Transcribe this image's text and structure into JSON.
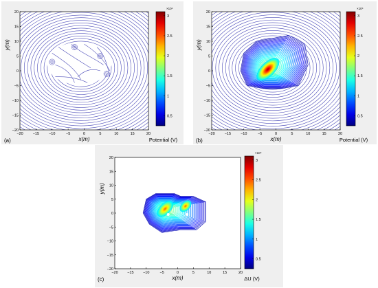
{
  "chart_data": [
    {
      "type": "contour",
      "panel_label": "(a)",
      "xlabel": "x(m)",
      "ylabel": "y(m)",
      "colorbar_label": "Potential (V)",
      "colorbar_exponent": "×10⁴",
      "xlim": [
        -20,
        20
      ],
      "ylim": [
        -20,
        20
      ],
      "x_ticks": [
        "−20",
        "−15",
        "−10",
        "−5",
        "0",
        "5",
        "10",
        "15",
        "20"
      ],
      "y_ticks": [
        "20",
        "15",
        "10",
        "5",
        "0",
        "−5",
        "−10",
        "−15",
        "−20"
      ],
      "colorbar_ticks": [
        "3",
        "2.5",
        "2",
        "1.5",
        "1",
        "0.5"
      ],
      "colorbar_range": [
        0.25,
        3.1
      ],
      "filled_core": false
    },
    {
      "type": "contour",
      "panel_label": "(b)",
      "xlabel": "x(m)",
      "ylabel": "y(m)",
      "colorbar_label": "Potential (V)",
      "colorbar_exponent": "×10⁴",
      "xlim": [
        -20,
        20
      ],
      "ylim": [
        -20,
        20
      ],
      "x_ticks": [
        "−20",
        "−15",
        "−10",
        "−5",
        "0",
        "5",
        "10",
        "15",
        "20"
      ],
      "y_ticks": [
        "20",
        "15",
        "10",
        "5",
        "0",
        "−5",
        "−10",
        "−15",
        "−20"
      ],
      "colorbar_ticks": [
        "3",
        "2.5",
        "2",
        "1.5",
        "1",
        "0.5"
      ],
      "colorbar_range": [
        0.25,
        3.1
      ],
      "filled_core": true,
      "peak": {
        "x": -2.5,
        "y": 0.5
      }
    },
    {
      "type": "contour",
      "panel_label": "(c)",
      "xlabel": "x(m)",
      "ylabel": "y(m)",
      "colorbar_label": "ΔU (V)",
      "colorbar_exponent": "×10⁴",
      "xlim": [
        -20,
        20
      ],
      "ylim": [
        -20,
        20
      ],
      "x_ticks": [
        "−20",
        "−15",
        "−10",
        "−5",
        "0",
        "5",
        "10",
        "15",
        "20"
      ],
      "y_ticks": [
        "20",
        "15",
        "10",
        "5",
        "0",
        "−5",
        "−10",
        "−15",
        "−20"
      ],
      "colorbar_ticks": [
        "3",
        "2.5",
        "2",
        "1.5",
        "1",
        "0.5"
      ],
      "colorbar_range": [
        0.25,
        3.1
      ],
      "filled_core": true,
      "peak": {
        "x": -4,
        "y": 1.5
      }
    }
  ]
}
